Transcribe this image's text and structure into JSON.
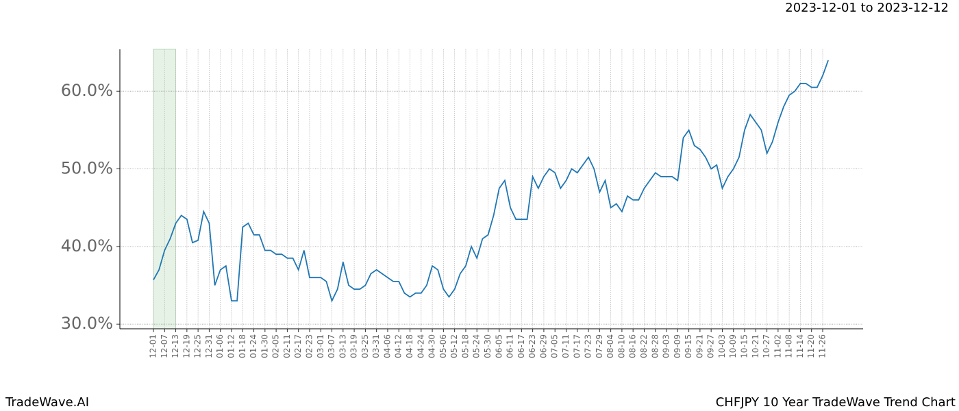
{
  "chart_data": {
    "type": "line",
    "date_range": "2023-12-01 to 2023-12-12",
    "brand": "TradeWave.AI",
    "title": "CHFJPY 10 Year TradeWave Trend Chart",
    "highlight": {
      "start": "12-01",
      "end": "12-12",
      "color": "#e6f2e6"
    },
    "categories": [
      "12-01",
      null,
      "12-07",
      null,
      "12-13",
      null,
      "12-19",
      null,
      "12-25",
      null,
      "12-31",
      null,
      "01-06",
      null,
      "01-12",
      null,
      "01-18",
      null,
      "01-24",
      null,
      "01-30",
      null,
      "02-05",
      null,
      "02-11",
      null,
      "02-17",
      null,
      "02-23",
      null,
      "03-01",
      null,
      "03-07",
      null,
      "03-13",
      null,
      "03-19",
      null,
      "03-25",
      null,
      "03-31",
      null,
      "04-06",
      null,
      "04-12",
      null,
      "04-18",
      null,
      "04-24",
      null,
      "04-30",
      null,
      "05-06",
      null,
      "05-12",
      null,
      "05-18",
      null,
      "05-24",
      null,
      "05-30",
      null,
      "06-05",
      null,
      "06-11",
      null,
      "06-17",
      null,
      "06-23",
      null,
      "06-29",
      null,
      "07-05",
      null,
      "07-11",
      null,
      "07-17",
      null,
      "07-23",
      null,
      "07-29",
      null,
      "08-04",
      null,
      "08-10",
      null,
      "08-16",
      null,
      "08-22",
      null,
      "08-28",
      null,
      "09-03",
      null,
      "09-09",
      null,
      "09-15",
      null,
      "09-21",
      null,
      "09-27",
      null,
      "10-03",
      null,
      "10-09",
      null,
      "10-15",
      null,
      "10-21",
      null,
      "10-27",
      null,
      "11-02",
      null,
      "11-08",
      null,
      "11-14",
      null,
      "11-20",
      null,
      "11-26",
      null
    ],
    "series": [
      {
        "name": "CHFJPY",
        "color": "#1f77b4",
        "values": [
          35.7,
          37,
          39.5,
          41,
          43,
          44,
          43.5,
          40.5,
          40.8,
          44.5,
          43,
          35,
          37,
          37.5,
          33,
          33,
          42.5,
          43,
          41.5,
          41.5,
          39.5,
          39.5,
          39,
          39,
          38.5,
          38.5,
          37,
          39.5,
          36,
          36,
          36,
          35.5,
          33,
          34.5,
          38,
          35,
          34.5,
          34.5,
          35,
          36.5,
          37,
          36.5,
          36,
          35.5,
          35.5,
          34,
          33.5,
          34,
          34,
          35,
          37.5,
          37,
          34.5,
          33.5,
          34.5,
          36.5,
          37.5,
          40,
          38.5,
          41,
          41.5,
          44,
          47.5,
          48.5,
          45,
          43.5,
          43.5,
          43.5,
          49,
          47.5,
          49,
          50,
          49.5,
          47.5,
          48.5,
          50,
          49.5,
          50.5,
          51.5,
          50,
          47,
          48.5,
          45,
          45.5,
          44.5,
          46.5,
          46,
          46,
          47.5,
          48.5,
          49.5,
          49,
          49,
          49,
          48.5,
          54,
          55,
          53,
          52.5,
          51.5,
          50,
          50.5,
          47.5,
          49,
          50,
          51.5,
          55,
          57,
          56,
          55,
          52,
          53.5,
          56,
          58,
          59.5,
          60,
          61,
          61,
          60.5,
          60.5,
          62,
          64
        ]
      }
    ],
    "ylim": [
      29.4,
      65.4
    ],
    "yticks": [
      {
        "value": 30,
        "label": "30.0%"
      },
      {
        "value": 40,
        "label": "40.0%"
      },
      {
        "value": 50,
        "label": "50.0%"
      },
      {
        "value": 60,
        "label": "60.0%"
      }
    ],
    "grid": true
  }
}
